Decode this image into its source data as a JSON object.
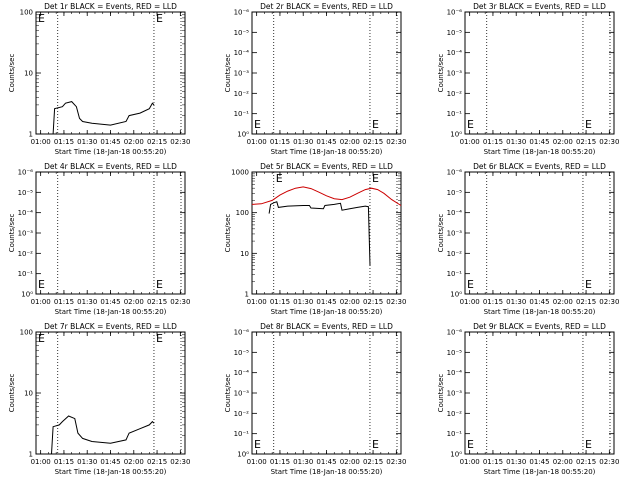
{
  "chart_data": [
    {
      "type": "line",
      "yscale": "log",
      "title": "Det 1r BLACK = Events, RED = LLD",
      "ylabel": "Counts/sec",
      "xlabel": "Start Time (18-Jan-18 00:55:20)",
      "xlim": [
        "00:57",
        "02:33"
      ],
      "ylim": [
        1,
        100
      ],
      "x_tick_labels": [
        "01:00",
        "01:15",
        "01:30",
        "01:45",
        "02:00",
        "02:15",
        "02:30"
      ],
      "y_tick_labels": [
        "1",
        "10",
        "100"
      ],
      "markers": [
        {
          "time": "01:11",
          "label": "E"
        },
        {
          "time": "02:13",
          "label": "E"
        }
      ],
      "series": [
        {
          "color": "#000000",
          "points": [
            [
              "01:08",
              1
            ],
            [
              "01:09",
              2.6
            ],
            [
              "01:14",
              2.8
            ],
            [
              "01:16",
              3.2
            ],
            [
              "01:20",
              3.4
            ],
            [
              "01:23",
              2.8
            ],
            [
              "01:25",
              1.8
            ],
            [
              "01:27",
              1.6
            ],
            [
              "01:33",
              1.5
            ],
            [
              "01:45",
              1.4
            ],
            [
              "01:55",
              1.6
            ],
            [
              "01:57",
              2.0
            ],
            [
              "02:04",
              2.2
            ],
            [
              "02:10",
              2.6
            ],
            [
              "02:12",
              3.2
            ],
            [
              "02:13",
              3.0
            ]
          ]
        }
      ]
    },
    {
      "type": "line",
      "yscale": "log",
      "title": "Det 2r BLACK = Events, RED = LLD",
      "ylabel": "Counts/sec",
      "xlabel": "Start Time (18-Jan-18 00:55:20)",
      "xlim": [
        "00:57",
        "02:33"
      ],
      "ylim": [
        1,
        1e-06
      ],
      "x_tick_labels": [
        "01:00",
        "01:15",
        "01:30",
        "01:45",
        "02:00",
        "02:15",
        "02:30"
      ],
      "y_tick_labels": [
        "10⁰",
        "10⁻¹",
        "10⁻²",
        "10⁻³",
        "10⁻⁴",
        "10⁻⁵",
        "10⁻⁶"
      ],
      "markers": [
        {
          "time": "01:11",
          "label": "E"
        },
        {
          "time": "02:13",
          "label": "E"
        }
      ],
      "series": []
    },
    {
      "type": "line",
      "yscale": "log",
      "title": "Det 3r BLACK = Events, RED = LLD",
      "ylabel": "Counts/sec",
      "xlabel": "Start Time (18-Jan-18 00:55:20)",
      "xlim": [
        "00:57",
        "02:33"
      ],
      "ylim": [
        1,
        1e-06
      ],
      "x_tick_labels": [
        "01:00",
        "01:15",
        "01:30",
        "01:45",
        "02:00",
        "02:15",
        "02:30"
      ],
      "y_tick_labels": [
        "10⁰",
        "10⁻¹",
        "10⁻²",
        "10⁻³",
        "10⁻⁴",
        "10⁻⁵",
        "10⁻⁶"
      ],
      "markers": [
        {
          "time": "01:11",
          "label": "E"
        },
        {
          "time": "02:13",
          "label": "E"
        }
      ],
      "series": []
    },
    {
      "type": "line",
      "yscale": "log",
      "title": "Det 4r BLACK = Events, RED = LLD",
      "ylabel": "Counts/sec",
      "xlabel": "Start Time (18-Jan-18 00:55:20)",
      "xlim": [
        "00:57",
        "02:33"
      ],
      "ylim": [
        1,
        1e-06
      ],
      "x_tick_labels": [
        "01:00",
        "01:15",
        "01:30",
        "01:45",
        "02:00",
        "02:15",
        "02:30"
      ],
      "y_tick_labels": [
        "10⁰",
        "10⁻¹",
        "10⁻²",
        "10⁻³",
        "10⁻⁴",
        "10⁻⁵",
        "10⁻⁶"
      ],
      "markers": [
        {
          "time": "01:11",
          "label": "E"
        },
        {
          "time": "02:13",
          "label": "E"
        }
      ],
      "series": []
    },
    {
      "type": "line",
      "yscale": "log",
      "title": "Det 5r BLACK = Events, RED = LLD",
      "ylabel": "Counts/sec",
      "xlabel": "Start Time (18-Jan-18 00:55:20)",
      "xlim": [
        "00:57",
        "02:33"
      ],
      "ylim": [
        1,
        1000
      ],
      "x_tick_labels": [
        "01:00",
        "01:15",
        "01:30",
        "01:45",
        "02:00",
        "02:15",
        "02:30"
      ],
      "y_tick_labels": [
        "1",
        "10",
        "100",
        "1000"
      ],
      "markers": [
        {
          "time": "01:11",
          "label": "E"
        },
        {
          "time": "02:13",
          "label": "E"
        }
      ],
      "series": [
        {
          "color": "#000000",
          "points": [
            [
              "01:08",
              95
            ],
            [
              "01:09",
              160
            ],
            [
              "01:11",
              175
            ],
            [
              "01:13",
              185
            ],
            [
              "01:14",
              135
            ],
            [
              "01:20",
              145
            ],
            [
              "01:30",
              150
            ],
            [
              "01:34",
              150
            ],
            [
              "01:35",
              130
            ],
            [
              "01:43",
              125
            ],
            [
              "01:44",
              150
            ],
            [
              "01:50",
              160
            ],
            [
              "01:54",
              170
            ],
            [
              "01:55",
              115
            ],
            [
              "02:00",
              125
            ],
            [
              "02:05",
              135
            ],
            [
              "02:10",
              145
            ],
            [
              "02:12",
              140
            ],
            [
              "02:13",
              5
            ]
          ]
        },
        {
          "color": "#cc0000",
          "points": [
            [
              "00:57",
              160
            ],
            [
              "01:03",
              165
            ],
            [
              "01:10",
              200
            ],
            [
              "01:15",
              270
            ],
            [
              "01:20",
              340
            ],
            [
              "01:25",
              400
            ],
            [
              "01:30",
              430
            ],
            [
              "01:35",
              390
            ],
            [
              "01:40",
              320
            ],
            [
              "01:45",
              260
            ],
            [
              "01:50",
              220
            ],
            [
              "01:55",
              210
            ],
            [
              "02:00",
              240
            ],
            [
              "02:05",
              300
            ],
            [
              "02:10",
              370
            ],
            [
              "02:14",
              400
            ],
            [
              "02:18",
              370
            ],
            [
              "02:22",
              300
            ],
            [
              "02:27",
              210
            ],
            [
              "02:33",
              150
            ]
          ]
        }
      ]
    },
    {
      "type": "line",
      "yscale": "log",
      "title": "Det 6r BLACK = Events, RED = LLD",
      "ylabel": "Counts/sec",
      "xlabel": "Start Time (18-Jan-18 00:55:20)",
      "xlim": [
        "00:57",
        "02:33"
      ],
      "ylim": [
        1,
        1e-06
      ],
      "x_tick_labels": [
        "01:00",
        "01:15",
        "01:30",
        "01:45",
        "02:00",
        "02:15",
        "02:30"
      ],
      "y_tick_labels": [
        "10⁰",
        "10⁻¹",
        "10⁻²",
        "10⁻³",
        "10⁻⁴",
        "10⁻⁵",
        "10⁻⁶"
      ],
      "markers": [
        {
          "time": "01:11",
          "label": "E"
        },
        {
          "time": "02:13",
          "label": "E"
        }
      ],
      "series": []
    },
    {
      "type": "line",
      "yscale": "log",
      "title": "Det 7r BLACK = Events, RED = LLD",
      "ylabel": "Counts/sec",
      "xlabel": "Start Time (18-Jan-18 00:55:20)",
      "xlim": [
        "00:57",
        "02:33"
      ],
      "ylim": [
        1,
        100
      ],
      "x_tick_labels": [
        "01:00",
        "01:15",
        "01:30",
        "01:45",
        "02:00",
        "02:15",
        "02:30"
      ],
      "y_tick_labels": [
        "1",
        "10",
        "100"
      ],
      "markers": [
        {
          "time": "01:11",
          "label": "E"
        },
        {
          "time": "02:13",
          "label": "E"
        }
      ],
      "series": [
        {
          "color": "#000000",
          "points": [
            [
              "01:07",
              1
            ],
            [
              "01:08",
              2.8
            ],
            [
              "01:12",
              3.0
            ],
            [
              "01:14",
              3.4
            ],
            [
              "01:18",
              4.2
            ],
            [
              "01:22",
              3.8
            ],
            [
              "01:24",
              2.2
            ],
            [
              "01:27",
              1.8
            ],
            [
              "01:33",
              1.6
            ],
            [
              "01:45",
              1.5
            ],
            [
              "01:55",
              1.7
            ],
            [
              "01:57",
              2.2
            ],
            [
              "02:04",
              2.6
            ],
            [
              "02:10",
              3.0
            ],
            [
              "02:12",
              3.4
            ],
            [
              "02:13",
              3.2
            ]
          ]
        }
      ]
    },
    {
      "type": "line",
      "yscale": "log",
      "title": "Det 8r BLACK = Events, RED = LLD",
      "ylabel": "Counts/sec",
      "xlabel": "Start Time (18-Jan-18 00:55:20)",
      "xlim": [
        "00:57",
        "02:33"
      ],
      "ylim": [
        1,
        1e-06
      ],
      "x_tick_labels": [
        "01:00",
        "01:15",
        "01:30",
        "01:45",
        "02:00",
        "02:15",
        "02:30"
      ],
      "y_tick_labels": [
        "10⁰",
        "10⁻¹",
        "10⁻²",
        "10⁻³",
        "10⁻⁴",
        "10⁻⁵",
        "10⁻⁶"
      ],
      "markers": [
        {
          "time": "01:11",
          "label": "E"
        },
        {
          "time": "02:13",
          "label": "E"
        }
      ],
      "series": []
    },
    {
      "type": "line",
      "yscale": "log",
      "title": "Det 9r BLACK = Events, RED = LLD",
      "ylabel": "Counts/sec",
      "xlabel": "Start Time (18-Jan-18 00:55:20)",
      "xlim": [
        "00:57",
        "02:33"
      ],
      "ylim": [
        1,
        1e-06
      ],
      "x_tick_labels": [
        "01:00",
        "01:15",
        "01:30",
        "01:45",
        "02:00",
        "02:15",
        "02:30"
      ],
      "y_tick_labels": [
        "10⁰",
        "10⁻¹",
        "10⁻²",
        "10⁻³",
        "10⁻⁴",
        "10⁻⁵",
        "10⁻⁶"
      ],
      "markers": [
        {
          "time": "01:11",
          "label": "E"
        },
        {
          "time": "02:13",
          "label": "E"
        }
      ],
      "series": []
    }
  ]
}
